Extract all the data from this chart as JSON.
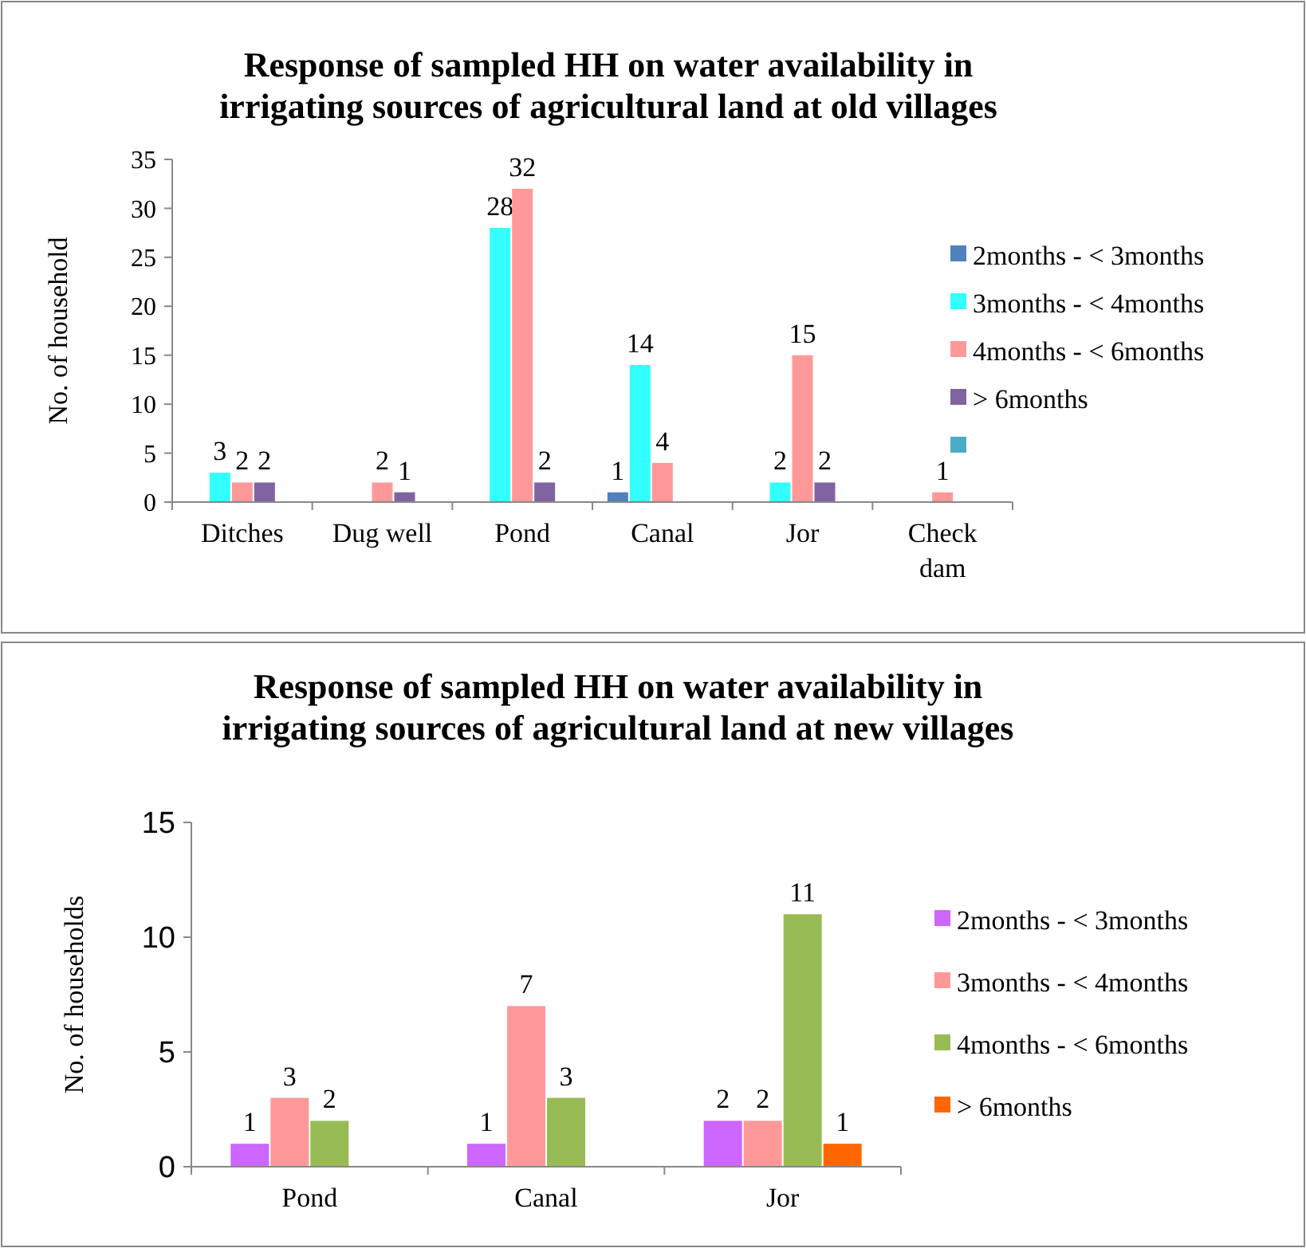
{
  "chart_data": [
    {
      "type": "bar",
      "title": "Response of sampled HH on water availability in\nirrigating sources of agricultural land at old villages",
      "ylabel": "No. of household",
      "categories": [
        "Ditches",
        "Dug well",
        "Pond",
        "Canal",
        "Jor",
        "Check\ndam"
      ],
      "series": [
        {
          "name": "2months - < 3months",
          "color": "#4f81bd",
          "values": [
            null,
            null,
            null,
            1,
            null,
            null
          ]
        },
        {
          "name": "3months - < 4months",
          "color": "#33ffff",
          "values": [
            3,
            null,
            28,
            14,
            2,
            null
          ]
        },
        {
          "name": "4months - < 6months",
          "color": "#ff9999",
          "values": [
            2,
            2,
            32,
            4,
            15,
            1
          ]
        },
        {
          "name": "> 6months",
          "color": "#8064a2",
          "values": [
            2,
            1,
            2,
            null,
            2,
            null
          ]
        },
        {
          "color": "#4bacc6",
          "values": [
            null,
            null,
            null,
            null,
            null,
            null
          ]
        }
      ],
      "ylim": [
        0,
        35
      ],
      "yticks": [
        0,
        5,
        10,
        15,
        20,
        25,
        30,
        35
      ],
      "grid": false,
      "legend": "right",
      "data_labels": true
    },
    {
      "type": "bar",
      "title": "Response of sampled HH on water availability in\nirrigating sources of agricultural land at new villages",
      "ylabel": "No. of households",
      "categories": [
        "Pond",
        "Canal",
        "Jor"
      ],
      "series": [
        {
          "name": "2months - < 3months",
          "color": "#cc66ff",
          "values": [
            1,
            1,
            2
          ]
        },
        {
          "name": "3months - < 4months",
          "color": "#ff9999",
          "values": [
            3,
            7,
            2
          ]
        },
        {
          "name": "4months - < 6months",
          "color": "#99bb55",
          "values": [
            2,
            3,
            11
          ]
        },
        {
          "name": "> 6months",
          "color": "#ff6600",
          "values": [
            null,
            null,
            1
          ]
        }
      ],
      "ylim": [
        0,
        15
      ],
      "yticks": [
        0,
        5,
        10,
        15
      ],
      "grid": false,
      "legend": "right",
      "data_labels": true
    }
  ]
}
